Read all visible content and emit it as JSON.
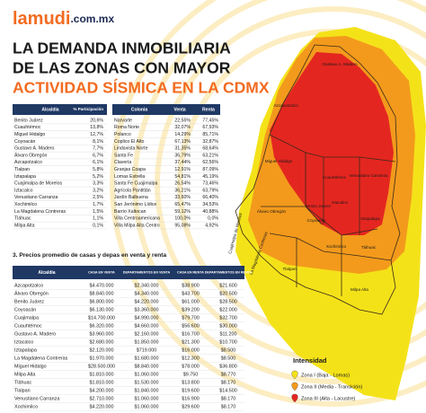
{
  "header": {
    "logo": "lamudi",
    "logo_suffix": ".com.mx",
    "title_line1": "LA DEMANDA INMOBILIARIA",
    "title_line2": "DE LAS ZONAS  CON MAYOR",
    "title_line3": "ACTIVIDAD SÍSMICA EN LA CDMX"
  },
  "participation_table": {
    "headers": [
      "Alcaldía",
      "% Participación"
    ],
    "rows": [
      [
        "Benito Juárez",
        "20,6%"
      ],
      [
        "Cuauhtémoc",
        "13,8%"
      ],
      [
        "Miguel Hidalgo",
        "12,7%"
      ],
      [
        "Coyoacán",
        "8,1%"
      ],
      [
        "Gustavo A. Madero",
        "7,7%"
      ],
      [
        "Álvaro Obregón",
        "6,7%"
      ],
      [
        "Azcapotzalco",
        "6,1%"
      ],
      [
        "Tlalpan",
        "5,8%"
      ],
      [
        "Iztapalapa",
        "5,2%"
      ],
      [
        "Cuajimalpa de Morelos",
        "3,3%"
      ],
      [
        "Iztacalco",
        "3,2%"
      ],
      [
        "Venustiano Carranza",
        "2,5%"
      ],
      [
        "Xochimilco",
        "1,7%"
      ],
      [
        "La Magdalena Contreras",
        "1,5%"
      ],
      [
        "Tláhuac",
        "1,1%"
      ],
      [
        "Milpa Alta",
        "0,1%"
      ]
    ]
  },
  "colonia_table": {
    "headers": [
      "Colonia",
      "Venta",
      "Renta"
    ],
    "rows": [
      [
        "Narvarte",
        "22,55%",
        "77,45%"
      ],
      [
        "Roma Norte",
        "32,07%",
        "67,93%"
      ],
      [
        "Polanco",
        "14,29%",
        "85,71%"
      ],
      [
        "Coplico El Alto",
        "67,13%",
        "32,87%"
      ],
      [
        "Lindavista Norte",
        "31,35%",
        "68,64%"
      ],
      [
        "Santa Fe",
        "36,79%",
        "63,21%"
      ],
      [
        "Clavería",
        "37,44%",
        "62,56%"
      ],
      [
        "Granjas Coapa",
        "12,91%",
        "87,09%"
      ],
      [
        "Lomas Estrella",
        "54,81%",
        "45,19%"
      ],
      [
        "Santa Fe Cuajimalpa",
        "26,54%",
        "73,46%"
      ],
      [
        "Agrícola Pantitlán",
        "36,21%",
        "63,79%"
      ],
      [
        "Jardín Balbuena",
        "33,60%",
        "66,40%"
      ],
      [
        "San Jerónimo Lídice",
        "65,47%",
        "34,53%"
      ],
      [
        "Barrio Xaltocan",
        "59,12%",
        "40,88%"
      ],
      [
        "Villa Centroamericana",
        "100,0%",
        "0,0%"
      ],
      [
        "Villa Milpa Alta Centro",
        "95,08%",
        "4,92%"
      ]
    ]
  },
  "prices_section": {
    "title": "3. Precios promedio de casas y depas en venta y renta",
    "headers": [
      "Alcaldía",
      "CASA EN VENTA",
      "DEPARTAMENTOS EN VENTA",
      "CASA EN RENTA",
      "DEPARTAMENTOS EN RENTA"
    ],
    "rows": [
      [
        "Azcapotzalco",
        "$4.470.000",
        "$2.340.000",
        "$38.900",
        "$21.600"
      ],
      [
        "Álvaro Obregón",
        "$8.840.000",
        "$4.340.000",
        "$43.700",
        "$20.500"
      ],
      [
        "Benito Juárez",
        "$6.800.000",
        "$4.220.000",
        "$61.000",
        "$28.500"
      ],
      [
        "Coyoacán",
        "$6.130.000",
        "$3.360.000",
        "$39.200",
        "$22.000"
      ],
      [
        "Cuajimalpa",
        "$14.700.000",
        "$4.990.000",
        "$79.700",
        "$32.700"
      ],
      [
        "Cuauhtémoc",
        "$6.320.000",
        "$4.660.000",
        "$56.600",
        "$30.000"
      ],
      [
        "Gustavo A. Madero",
        "$3.960.000",
        "$2.160.000",
        "$16.700",
        "$11.200"
      ],
      [
        "Iztacalco",
        "$2.680.000",
        "$1.850.000",
        "$21.300",
        "$10.700"
      ],
      [
        "Iztapalapa",
        "$2.120.000",
        "$719.000",
        "$16.000",
        "$8.500"
      ],
      [
        "La Magdalena Contreras",
        "$1.970.000",
        "$1.680.000",
        "$12.300",
        "$8.500"
      ],
      [
        "Miguel Hidalgo",
        "$28.500.000",
        "$8.840.000",
        "$78.000",
        "$36.800"
      ],
      [
        "Milpa Alta",
        "$1.810.000",
        "$1.060.000",
        "$9.750",
        "$8.770"
      ],
      [
        "Tláhuac",
        "$1.810.000",
        "$1.530.000",
        "$13.800",
        "$8.170"
      ],
      [
        "Tlalpan",
        "$4.200.000",
        "$1.840.000",
        "$19.600",
        "$14.500"
      ],
      [
        "Venustiano Carranza",
        "$2.710.000",
        "$1.060.000",
        "$16.900",
        "$8.170"
      ],
      [
        "Xochimilco",
        "$4.220.000",
        "$1.060.000",
        "$29.600",
        "$8.170"
      ]
    ]
  },
  "map": {
    "labels": [
      "Gustavo A. Madero",
      "Azcapotzalco",
      "Miguel Hidalgo",
      "Cuauhtémoc",
      "Venustiano Carranza",
      "Iztacalco",
      "Benito Juárez",
      "Álvaro Obregón",
      "Coyoacán",
      "Iztapalapa",
      "Cuajimalpa de Morelos",
      "La Magdalena Contreras",
      "Xochimilco",
      "Tláhuac",
      "Tlalpan",
      "Milpa Alta"
    ]
  },
  "legend": {
    "title": "Intensidad",
    "items": [
      "Zona I (Baja - Lomas)",
      "Zona II (Media - Transición)",
      "Zona III (Alta - Lacustre)"
    ]
  }
}
